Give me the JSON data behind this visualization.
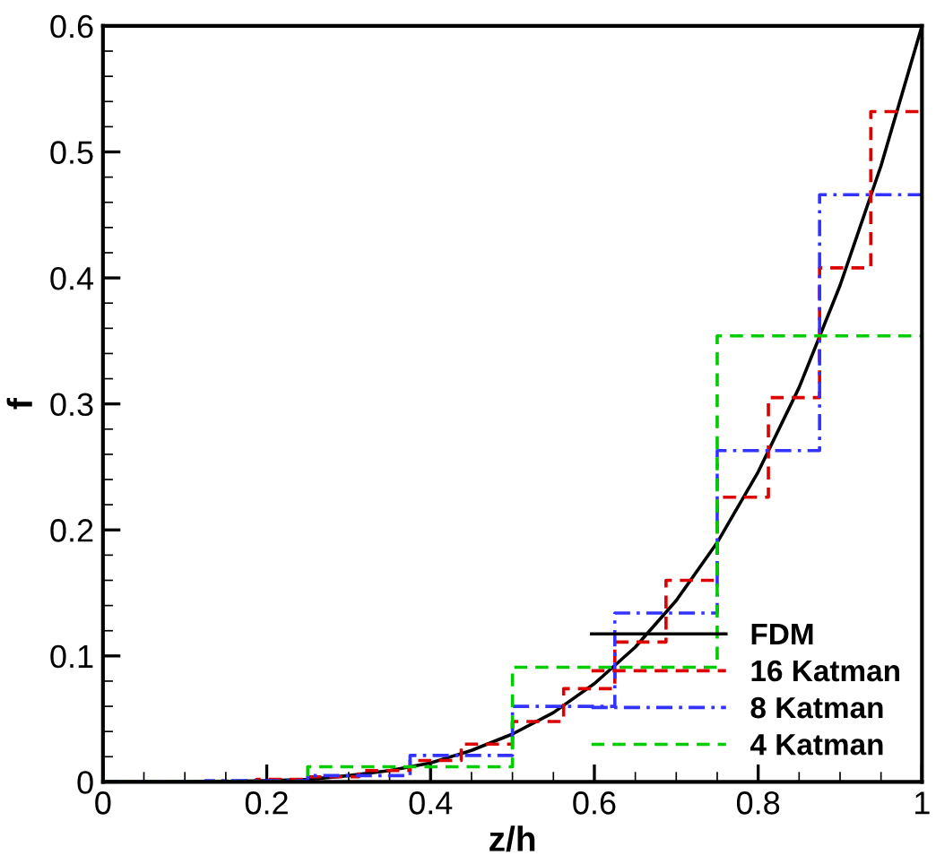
{
  "chart_data": {
    "type": "line",
    "xlabel": "z/h",
    "ylabel": "f",
    "xlim": [
      0,
      1
    ],
    "ylim": [
      0,
      0.6
    ],
    "xticks": [
      {
        "value": 0,
        "label": "0"
      },
      0.2,
      0.4,
      0.6,
      0.8,
      {
        "value": 1,
        "label": "1"
      }
    ],
    "yticks": [
      {
        "value": 0,
        "label": "0"
      },
      0.1,
      0.2,
      0.3,
      0.4,
      0.5,
      0.6
    ],
    "grid": false,
    "legend": "bottom right",
    "marker": "none",
    "series": [
      {
        "name": "FDM",
        "color": "#000000",
        "line_style": "solid",
        "x": [
          0,
          0.1,
          0.2,
          0.25,
          0.3,
          0.35,
          0.4,
          0.45,
          0.5,
          0.55,
          0.6,
          0.65,
          0.7,
          0.75,
          0.8,
          0.85,
          0.9,
          0.95,
          1
        ],
        "values": [
          0,
          0,
          0.001,
          0.002,
          0.005,
          0.009,
          0.015,
          0.025,
          0.038,
          0.055,
          0.078,
          0.107,
          0.144,
          0.19,
          0.246,
          0.313,
          0.394,
          0.489,
          0.6
        ]
      },
      {
        "name": "16 Katman",
        "type": "step",
        "color": "#dd0000",
        "line_style": "dashed",
        "x": [
          0,
          0.1875,
          0.25,
          0.3125,
          0.375,
          0.4375,
          0.5,
          0.5625,
          0.625,
          0.6875,
          0.75,
          0.8125,
          0.875,
          0.9375,
          1
        ],
        "values": [
          0,
          0.002,
          0.004,
          0.009,
          0.017,
          0.03,
          0.048,
          0.074,
          0.111,
          0.16,
          0.226,
          0.305,
          0.408,
          0.532,
          0.532
        ]
      },
      {
        "name": "8 Katman",
        "type": "step",
        "color": "#3333ff",
        "line_style": "dashdot",
        "x": [
          0,
          0.125,
          0.25,
          0.375,
          0.5,
          0.625,
          0.75,
          0.875,
          1
        ],
        "values": [
          0,
          0.001,
          0.005,
          0.021,
          0.06,
          0.134,
          0.263,
          0.466,
          0.466
        ]
      },
      {
        "name": "4 Katman",
        "type": "step",
        "color": "#00cc00",
        "line_style": "dashed",
        "x": [
          0,
          0.25,
          0.5,
          0.75,
          1
        ],
        "values": [
          0,
          0.012,
          0.091,
          0.354,
          0.354
        ]
      }
    ]
  }
}
